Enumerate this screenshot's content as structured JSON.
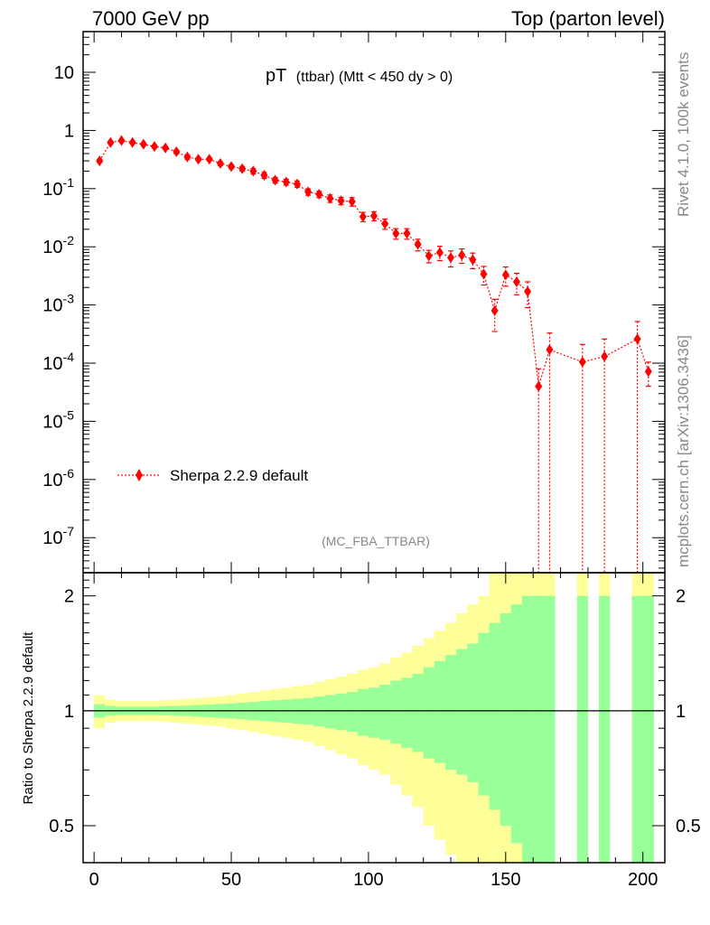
{
  "header": {
    "left": "7000 GeV pp",
    "right": "Top (parton level)"
  },
  "plot_title": {
    "main": "pT",
    "sub": "(ttbar) (Mtt < 450 dy > 0)"
  },
  "side_text": {
    "rivet": "Rivet 4.1.0,  100k events",
    "mcplots": "mcplots.cern.ch [arXiv:1306.3436]"
  },
  "analysis_id": "(MC_FBA_TTBAR)",
  "legend": {
    "label": "Sherpa 2.2.9 default",
    "position": "lower-left"
  },
  "ratio_ylabel": "Ratio to Sherpa 2.2.9 default",
  "colors": {
    "series": "#ff0000",
    "band_inner": "#99ff99",
    "band_outer": "#ffff99",
    "text_gray": "#888888"
  },
  "chart_data": {
    "type": "scatter",
    "x_range": [
      -4,
      208
    ],
    "y_log_range": [
      2.5e-08,
      50
    ],
    "ratio_range": [
      0.4,
      2.3
    ],
    "x_ticks": [
      "0",
      "50",
      "100",
      "150",
      "200"
    ],
    "y_ticks": [
      {
        "base": "10",
        "exp": "-7"
      },
      {
        "base": "10",
        "exp": "-6"
      },
      {
        "base": "10",
        "exp": "-5"
      },
      {
        "base": "10",
        "exp": "-4"
      },
      {
        "base": "10",
        "exp": "-3"
      },
      {
        "base": "10",
        "exp": "-2"
      },
      {
        "base": "10",
        "exp": "-1"
      },
      {
        "base": "1",
        "exp": ""
      },
      {
        "base": "10",
        "exp": ""
      }
    ],
    "ratio_ticks": [
      "0.5",
      "1",
      "2"
    ],
    "series": [
      {
        "name": "Sherpa 2.2.9 default",
        "x": [
          2,
          6,
          10,
          14,
          18,
          22,
          26,
          30,
          34,
          38,
          42,
          46,
          50,
          54,
          58,
          62,
          66,
          70,
          74,
          78,
          82,
          86,
          90,
          94,
          98,
          102,
          106,
          110,
          114,
          118,
          122,
          126,
          130,
          134,
          138,
          142,
          146,
          150,
          154,
          158,
          162,
          166,
          178,
          186,
          198,
          202
        ],
        "y": [
          0.3,
          0.62,
          0.67,
          0.62,
          0.58,
          0.53,
          0.5,
          0.43,
          0.35,
          0.32,
          0.32,
          0.27,
          0.24,
          0.22,
          0.2,
          0.17,
          0.14,
          0.13,
          0.12,
          0.088,
          0.08,
          0.068,
          0.062,
          0.06,
          0.033,
          0.034,
          0.025,
          0.017,
          0.017,
          0.011,
          0.007,
          0.008,
          0.0065,
          0.0072,
          0.006,
          0.0034,
          0.0008,
          0.0033,
          0.0025,
          0.0017,
          4e-05,
          0.00017,
          0.000105,
          0.00013,
          0.00026,
          7.2e-05
        ],
        "err_low": [
          0.28,
          0.59,
          0.64,
          0.59,
          0.55,
          0.5,
          0.47,
          0.4,
          0.32,
          0.3,
          0.3,
          0.25,
          0.22,
          0.2,
          0.18,
          0.15,
          0.125,
          0.115,
          0.105,
          0.077,
          0.07,
          0.058,
          0.053,
          0.05,
          0.027,
          0.028,
          0.02,
          0.0135,
          0.0135,
          0.0085,
          0.0053,
          0.0058,
          0.0045,
          0.0052,
          0.0042,
          0.0022,
          0.00035,
          0.0021,
          0.0015,
          0.0009,
          0.0,
          0.0,
          0.0,
          0.0,
          0.0,
          4e-05
        ],
        "err_high": [
          0.32,
          0.65,
          0.7,
          0.65,
          0.61,
          0.56,
          0.53,
          0.46,
          0.38,
          0.34,
          0.34,
          0.29,
          0.26,
          0.24,
          0.22,
          0.19,
          0.155,
          0.145,
          0.135,
          0.099,
          0.09,
          0.078,
          0.071,
          0.07,
          0.039,
          0.04,
          0.03,
          0.0205,
          0.0205,
          0.0135,
          0.0087,
          0.0102,
          0.0085,
          0.0092,
          0.0078,
          0.0046,
          0.00125,
          0.0045,
          0.0035,
          0.0025,
          8e-05,
          0.00033,
          0.00021,
          0.00026,
          0.00052,
          0.000104
        ]
      }
    ],
    "ratio_bands": {
      "bin_edges": [
        0,
        4,
        8,
        12,
        16,
        20,
        24,
        28,
        32,
        36,
        40,
        44,
        48,
        52,
        56,
        60,
        64,
        68,
        72,
        76,
        80,
        84,
        88,
        92,
        96,
        100,
        104,
        108,
        112,
        116,
        120,
        124,
        128,
        132,
        136,
        140,
        144,
        148,
        152,
        156,
        160,
        164,
        168
      ],
      "inner_low": [
        0.96,
        0.97,
        0.975,
        0.975,
        0.975,
        0.975,
        0.972,
        0.97,
        0.968,
        0.965,
        0.962,
        0.958,
        0.955,
        0.95,
        0.945,
        0.94,
        0.935,
        0.93,
        0.925,
        0.92,
        0.91,
        0.9,
        0.89,
        0.88,
        0.86,
        0.85,
        0.84,
        0.82,
        0.8,
        0.78,
        0.75,
        0.73,
        0.7,
        0.68,
        0.65,
        0.6,
        0.55,
        0.5,
        0.45,
        0.4,
        0.35,
        0.3
      ],
      "inner_high": [
        1.04,
        1.03,
        1.025,
        1.025,
        1.025,
        1.025,
        1.028,
        1.03,
        1.032,
        1.035,
        1.038,
        1.042,
        1.045,
        1.05,
        1.055,
        1.06,
        1.065,
        1.07,
        1.075,
        1.08,
        1.09,
        1.1,
        1.11,
        1.12,
        1.14,
        1.15,
        1.17,
        1.2,
        1.22,
        1.25,
        1.3,
        1.35,
        1.4,
        1.45,
        1.5,
        1.6,
        1.7,
        1.8,
        1.9,
        2.0,
        2.0,
        2.0
      ],
      "outer_low": [
        0.9,
        0.93,
        0.94,
        0.94,
        0.94,
        0.94,
        0.935,
        0.93,
        0.925,
        0.92,
        0.915,
        0.91,
        0.9,
        0.89,
        0.88,
        0.87,
        0.86,
        0.85,
        0.84,
        0.83,
        0.81,
        0.79,
        0.77,
        0.75,
        0.72,
        0.7,
        0.68,
        0.64,
        0.6,
        0.56,
        0.5,
        0.46,
        0.42,
        0.38,
        0.34,
        0.3,
        0.25,
        0.2,
        0.15,
        0.1,
        0.1,
        0.1
      ],
      "outer_high": [
        1.1,
        1.07,
        1.06,
        1.06,
        1.06,
        1.06,
        1.065,
        1.07,
        1.075,
        1.08,
        1.085,
        1.09,
        1.1,
        1.11,
        1.12,
        1.13,
        1.14,
        1.15,
        1.16,
        1.17,
        1.19,
        1.21,
        1.23,
        1.25,
        1.28,
        1.3,
        1.33,
        1.38,
        1.42,
        1.48,
        1.55,
        1.62,
        1.7,
        1.8,
        1.9,
        2.0,
        2.3,
        2.3,
        2.3,
        2.3,
        2.3,
        2.3
      ],
      "extra_bins": [
        {
          "x0": 176,
          "x1": 180,
          "inner_low": 0.3,
          "inner_high": 2.0,
          "outer_low": 0.1,
          "outer_high": 2.3
        },
        {
          "x0": 184,
          "x1": 188,
          "inner_low": 0.3,
          "inner_high": 2.0,
          "outer_low": 0.1,
          "outer_high": 2.3
        },
        {
          "x0": 196,
          "x1": 200,
          "inner_low": 0.3,
          "inner_high": 2.0,
          "outer_low": 0.1,
          "outer_high": 2.3
        },
        {
          "x0": 200,
          "x1": 204,
          "inner_low": 0.3,
          "inner_high": 2.0,
          "outer_low": 0.1,
          "outer_high": 2.3
        }
      ]
    }
  }
}
